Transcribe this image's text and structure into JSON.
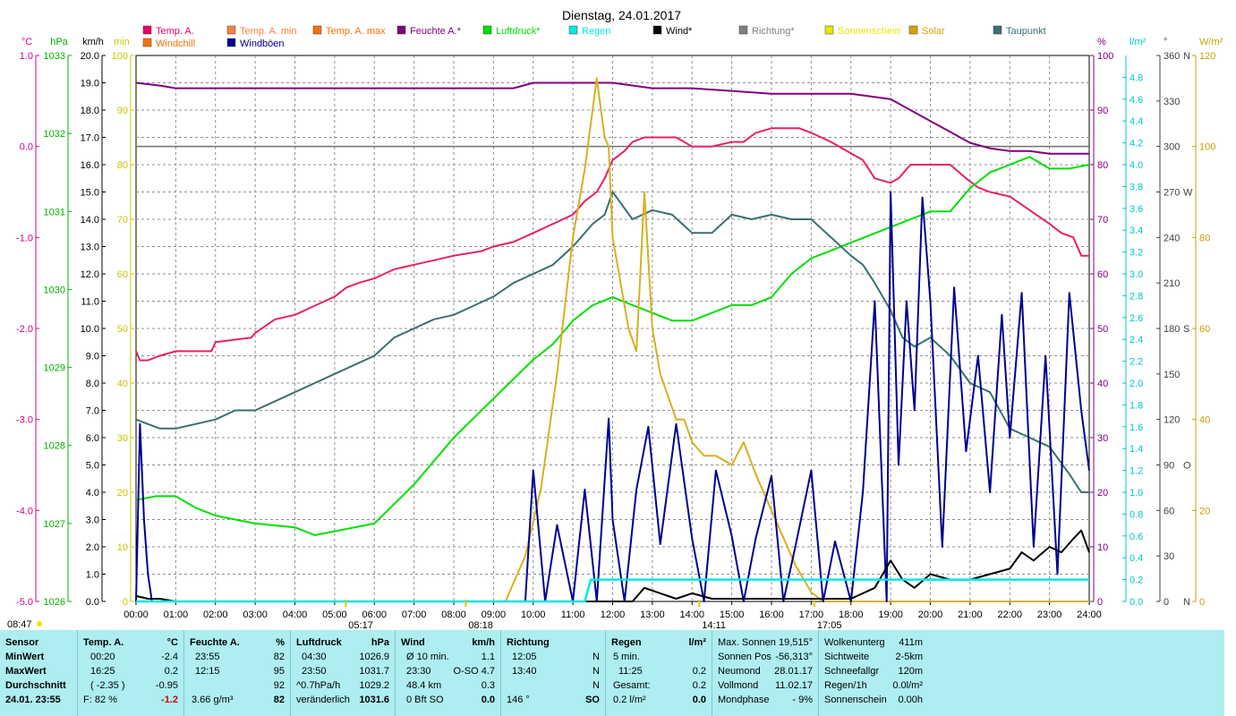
{
  "chart_data": {
    "type": "line",
    "title": "Dienstag, 24.01.2017",
    "x_ticks": [
      "00:00",
      "01:00",
      "02:00",
      "03:00",
      "04:00",
      "05:00",
      "06:00",
      "07:00",
      "08:00",
      "09:00",
      "10:00",
      "11:00",
      "12:00",
      "13:00",
      "14:00",
      "15:00",
      "16:00",
      "17:00",
      "18:00",
      "19:00",
      "20:00",
      "21:00",
      "22:00",
      "23:00",
      "24:00"
    ],
    "xlim": [
      0,
      24
    ],
    "grid": true,
    "legend_position": "top",
    "left_axes": [
      {
        "unit": "°C",
        "color": "#d0008a",
        "ticks": [
          "1.0",
          "0.0",
          "-1.0",
          "-2.0",
          "-3.0",
          "-4.0",
          "-5.0"
        ],
        "ylim": [
          -5,
          1
        ]
      },
      {
        "unit": "hPa",
        "color": "#00b000",
        "ticks": [
          "1033",
          "1032",
          "1031",
          "1030",
          "1029",
          "1028",
          "1027",
          "1026"
        ],
        "ylim": [
          1026,
          1033
        ]
      },
      {
        "unit": "km/h",
        "color": "#000000",
        "ticks": [
          "20.0",
          "19.0",
          "18.0",
          "17.0",
          "16.0",
          "15.0",
          "14.0",
          "13.0",
          "12.0",
          "11.0",
          "10.0",
          "9.0",
          "8.0",
          "7.0",
          "6.0",
          "5.0",
          "4.0",
          "3.0",
          "2.0",
          "1.0",
          "0.0"
        ],
        "ylim": [
          0,
          20
        ]
      },
      {
        "unit": "min",
        "color": "#c8c800",
        "ticks": [
          "100",
          "90",
          "80",
          "70",
          "60",
          "50",
          "40",
          "30",
          "20",
          "10",
          "0"
        ],
        "ylim": [
          0,
          100
        ]
      }
    ],
    "right_axes": [
      {
        "unit": "%",
        "color": "#800080",
        "ticks": [
          "100",
          "90",
          "80",
          "70",
          "60",
          "50",
          "40",
          "30",
          "20",
          "10",
          "0"
        ],
        "ylim": [
          0,
          100
        ]
      },
      {
        "unit": "l/m²",
        "color": "#00c8c8",
        "ticks": [
          "4.8",
          "4.6",
          "4.4",
          "4.2",
          "4.0",
          "3.8",
          "3.6",
          "3.4",
          "3.2",
          "3.0",
          "2.8",
          "2.6",
          "2.4",
          "2.2",
          "2.0",
          "1.8",
          "1.6",
          "1.4",
          "1.2",
          "1.0",
          "0.8",
          "0.6",
          "0.4",
          "0.2",
          "0.0"
        ],
        "ylim": [
          0,
          5
        ]
      },
      {
        "unit": "°",
        "color": "#404040",
        "ticks": [
          "360",
          "330",
          "300",
          "270",
          "240",
          "210",
          "180",
          "150",
          "120",
          "90",
          "60",
          "30",
          "0"
        ],
        "compass": {
          "360": "N",
          "270": "W",
          "180": "S",
          "90": "O",
          "0": "N"
        },
        "ylim": [
          0,
          360
        ]
      },
      {
        "unit": "W/m²",
        "color": "#c8a000",
        "ticks": [
          "120",
          "100",
          "80",
          "60",
          "40",
          "20",
          "0"
        ],
        "ylim": [
          0,
          120
        ]
      }
    ],
    "legend": [
      {
        "name": "Temp. A.",
        "color": "#e8006a"
      },
      {
        "name": "Temp. A. min",
        "color": "#ff8040"
      },
      {
        "name": "Temp. A. max",
        "color": "#ff7000"
      },
      {
        "name": "Feuchte A.*",
        "color": "#800080"
      },
      {
        "name": "Luftdruck*",
        "color": "#00e000"
      },
      {
        "name": "Regen",
        "color": "#00e8e8"
      },
      {
        "name": "Wind*",
        "color": "#000000"
      },
      {
        "name": "Richtung*",
        "color": "#808080"
      },
      {
        "name": "Sonnenschein",
        "color": "#e8e800"
      },
      {
        "name": "Solar",
        "color": "#d8a000"
      },
      {
        "name": "Taupunkt",
        "color": "#3a7070"
      },
      {
        "name": "Windchill",
        "color": "#ff7000"
      },
      {
        "name": "Windböen",
        "color": "#000090"
      }
    ],
    "series": [
      {
        "name": "Temp. A.",
        "color": "#e8206a",
        "axis": "°C",
        "x": [
          0,
          0.1,
          0.3,
          0.6,
          1.0,
          1.9,
          2.0,
          2.9,
          3.0,
          3.5,
          4.0,
          4.5,
          5.0,
          5.3,
          5.6,
          6.0,
          6.5,
          7.0,
          7.5,
          8.0,
          8.7,
          9.0,
          9.5,
          10.0,
          10.5,
          11.0,
          11.3,
          11.6,
          11.8,
          12.0,
          12.3,
          12.5,
          12.8,
          13.0,
          13.3,
          13.6,
          14.0,
          14.5,
          15.0,
          15.3,
          15.6,
          16.0,
          16.7,
          17.0,
          17.5,
          17.9,
          18.3,
          18.6,
          19.0,
          19.2,
          19.5,
          20.0,
          20.5,
          20.9,
          21.2,
          21.5,
          22.0,
          22.5,
          23.0,
          23.3,
          23.6,
          23.8,
          24.0
        ],
        "y": [
          -2.25,
          -2.35,
          -2.35,
          -2.3,
          -2.25,
          -2.25,
          -2.15,
          -2.1,
          -2.05,
          -1.9,
          -1.85,
          -1.75,
          -1.65,
          -1.55,
          -1.5,
          -1.45,
          -1.35,
          -1.3,
          -1.25,
          -1.2,
          -1.15,
          -1.1,
          -1.05,
          -0.95,
          -0.85,
          -0.75,
          -0.6,
          -0.5,
          -0.35,
          -0.15,
          -0.05,
          0.05,
          0.1,
          0.1,
          0.1,
          0.1,
          0.0,
          0.0,
          0.05,
          0.05,
          0.15,
          0.2,
          0.2,
          0.15,
          0.05,
          -0.05,
          -0.15,
          -0.35,
          -0.4,
          -0.35,
          -0.2,
          -0.2,
          -0.2,
          -0.35,
          -0.45,
          -0.5,
          -0.55,
          -0.7,
          -0.85,
          -0.95,
          -1.0,
          -1.2,
          -1.2
        ]
      },
      {
        "name": "Feuchte A.*",
        "color": "#800080",
        "axis": "%",
        "x": [
          0,
          0.6,
          1.0,
          3.0,
          5.0,
          8.0,
          9.5,
          10.0,
          11.0,
          12.0,
          13.0,
          14.0,
          15.0,
          16.0,
          17.0,
          18.0,
          18.5,
          19.0,
          19.5,
          20.0,
          20.5,
          21.0,
          21.5,
          22.0,
          22.5,
          23.0,
          23.5,
          24.0
        ],
        "y": [
          95,
          94.5,
          94,
          94,
          94,
          94,
          94,
          95,
          95,
          95,
          94,
          94,
          93.5,
          93,
          93,
          93,
          92.5,
          92,
          90,
          88,
          86,
          84,
          83,
          82.5,
          82.5,
          82,
          82,
          82
        ]
      },
      {
        "name": "Luftdruck*",
        "color": "#00e000",
        "axis": "hPa",
        "x": [
          0,
          0.5,
          1.0,
          1.5,
          2.0,
          3.0,
          4.0,
          4.5,
          5.0,
          6.0,
          7.0,
          8.0,
          9.0,
          10.0,
          10.5,
          11.0,
          11.5,
          12.0,
          12.5,
          13.0,
          13.5,
          14.0,
          14.5,
          15.0,
          15.5,
          16.0,
          16.5,
          17.0,
          17.5,
          18.0,
          18.5,
          19.0,
          19.5,
          20.0,
          20.5,
          21.0,
          21.5,
          22.0,
          22.5,
          23.0,
          23.5,
          24.0
        ],
        "y": [
          1027.3,
          1027.35,
          1027.35,
          1027.2,
          1027.1,
          1027.0,
          1026.95,
          1026.85,
          1026.9,
          1027.0,
          1027.5,
          1028.1,
          1028.6,
          1029.1,
          1029.3,
          1029.6,
          1029.8,
          1029.9,
          1029.8,
          1029.7,
          1029.6,
          1029.6,
          1029.7,
          1029.8,
          1029.8,
          1029.9,
          1030.2,
          1030.4,
          1030.5,
          1030.6,
          1030.7,
          1030.8,
          1030.9,
          1031.0,
          1031.0,
          1031.3,
          1031.5,
          1031.6,
          1031.7,
          1031.55,
          1031.55,
          1031.6
        ]
      },
      {
        "name": "Taupunkt",
        "color": "#3a7070",
        "axis": "°C",
        "x": [
          0,
          0.3,
          0.6,
          1.0,
          2.0,
          2.5,
          3.0,
          3.5,
          4.0,
          4.5,
          5.0,
          5.5,
          6.0,
          6.5,
          7.0,
          7.5,
          8.0,
          8.5,
          9.0,
          9.5,
          10.0,
          10.5,
          11.0,
          11.5,
          11.8,
          12.0,
          12.5,
          13.0,
          13.5,
          14.0,
          14.5,
          15.0,
          15.5,
          16.0,
          16.5,
          17.0,
          17.5,
          18.0,
          18.3,
          18.6,
          19.0,
          19.3,
          19.6,
          20.0,
          20.5,
          21.0,
          21.5,
          22.0,
          22.5,
          23.0,
          23.5,
          23.8,
          24.0
        ],
        "y": [
          -3.0,
          -3.05,
          -3.1,
          -3.1,
          -3.0,
          -2.9,
          -2.9,
          -2.8,
          -2.7,
          -2.6,
          -2.5,
          -2.4,
          -2.3,
          -2.1,
          -2.0,
          -1.9,
          -1.85,
          -1.75,
          -1.65,
          -1.5,
          -1.4,
          -1.3,
          -1.1,
          -0.85,
          -0.75,
          -0.5,
          -0.8,
          -0.7,
          -0.75,
          -0.95,
          -0.95,
          -0.75,
          -0.8,
          -0.75,
          -0.8,
          -0.8,
          -1.0,
          -1.2,
          -1.3,
          -1.5,
          -1.8,
          -2.1,
          -2.2,
          -2.1,
          -2.3,
          -2.6,
          -2.7,
          -3.1,
          -3.2,
          -3.3,
          -3.6,
          -3.8,
          -3.8
        ]
      },
      {
        "name": "Solar",
        "color": "#d8b020",
        "axis": "W/m²",
        "x": [
          0,
          9.3,
          9.8,
          10.2,
          10.6,
          11.0,
          11.3,
          11.6,
          11.8,
          11.9,
          12.0,
          12.2,
          12.4,
          12.6,
          12.8,
          13.0,
          13.2,
          13.4,
          13.6,
          13.8,
          14.0,
          14.3,
          14.6,
          15.0,
          15.3,
          15.6,
          16.0,
          16.3,
          16.6,
          17.0,
          17.3,
          24.0
        ],
        "y": [
          0,
          0,
          10,
          25,
          50,
          80,
          95,
          115,
          102,
          100,
          80,
          70,
          60,
          55,
          90,
          60,
          50,
          45,
          40,
          40,
          35,
          32,
          32,
          30,
          35,
          28,
          20,
          14,
          8,
          2,
          0,
          0
        ]
      },
      {
        "name": "Windböen",
        "color": "#000090",
        "axis": "km/h",
        "x": [
          0,
          0.1,
          0.2,
          0.3,
          0.4,
          9.8,
          10.0,
          10.3,
          10.6,
          11.0,
          11.3,
          11.6,
          11.9,
          12.0,
          12.3,
          12.6,
          12.9,
          13.2,
          13.6,
          14.0,
          14.3,
          14.6,
          15.0,
          15.3,
          15.6,
          16.0,
          16.3,
          16.6,
          17.0,
          17.3,
          17.6,
          18.0,
          18.3,
          18.6,
          18.9,
          19.0,
          19.2,
          19.4,
          19.6,
          19.8,
          20.0,
          20.3,
          20.6,
          20.9,
          21.2,
          21.5,
          21.8,
          22.0,
          22.3,
          22.6,
          22.9,
          23.2,
          23.5,
          23.8,
          24.0
        ],
        "y": [
          0,
          6.5,
          3.0,
          1.0,
          0,
          0,
          4.8,
          0,
          2.8,
          0,
          4.1,
          0,
          6.7,
          3.0,
          0,
          4.1,
          6.4,
          2.1,
          6.5,
          2.3,
          0,
          4.8,
          2.4,
          0,
          2.3,
          4.6,
          0,
          2.0,
          4.8,
          0,
          2.2,
          0,
          4.0,
          11.0,
          0,
          15.0,
          5.0,
          11.0,
          7.0,
          14.8,
          11.0,
          2.0,
          11.5,
          5.5,
          9.0,
          4.0,
          10.5,
          6.0,
          11.3,
          2.0,
          9.0,
          1.0,
          11.3,
          7.0,
          4.8
        ]
      },
      {
        "name": "Wind*",
        "color": "#000000",
        "axis": "km/h",
        "x": [
          0,
          0.3,
          0.6,
          1.0,
          12.5,
          12.8,
          13.2,
          13.6,
          14.0,
          14.5,
          15.0,
          16.0,
          17.0,
          18.0,
          18.6,
          19.0,
          19.3,
          19.6,
          20.0,
          20.5,
          21.0,
          21.5,
          22.0,
          22.3,
          22.6,
          23.0,
          23.3,
          23.6,
          23.8,
          24.0
        ],
        "y": [
          0.2,
          0.1,
          0.1,
          0,
          0,
          0.5,
          0.3,
          0.1,
          0.3,
          0.1,
          0.1,
          0.1,
          0.1,
          0.1,
          0.5,
          1.5,
          0.8,
          0.5,
          1.0,
          0.8,
          0.8,
          1.0,
          1.2,
          1.8,
          1.5,
          2.0,
          1.8,
          2.3,
          2.6,
          1.8
        ]
      },
      {
        "name": "Regen",
        "color": "#00e8e8",
        "axis": "l/m²",
        "x": [
          0,
          11.3,
          11.45,
          24.0
        ],
        "y": [
          0,
          0,
          0.2,
          0.2
        ]
      }
    ],
    "annotations": [
      {
        "text": "08:47",
        "position": "left"
      },
      {
        "text": "05:17",
        "x": 5.28
      },
      {
        "text": "08:18",
        "x": 8.3
      },
      {
        "text": "14:11",
        "x": 14.18
      },
      {
        "text": "17:05",
        "x": 17.08
      }
    ]
  },
  "stats": {
    "sensor": {
      "header": "Sensor",
      "rows": [
        "MinWert",
        "MaxWert",
        "Durchschnitt",
        "24.01. 23:55"
      ]
    },
    "temp": {
      "header": "Temp. A.",
      "unit": "°C",
      "rows": [
        [
          "00:20",
          "-2.4"
        ],
        [
          "16:25",
          "0.2"
        ],
        [
          "( -2.35 )",
          "-0.95"
        ],
        [
          "F: 82 %",
          "-1.2"
        ]
      ]
    },
    "feuchte": {
      "header": "Feuchte A.",
      "unit": "%",
      "rows": [
        [
          "23:55",
          "82"
        ],
        [
          "12:15",
          "95"
        ],
        [
          "",
          "92"
        ],
        [
          "3.66 g/m³",
          "82"
        ]
      ]
    },
    "luftdruck": {
      "header": "Luftdruck",
      "unit": "hPa",
      "rows": [
        [
          "04:30",
          "1026.9"
        ],
        [
          "23:50",
          "1031.7"
        ],
        [
          "^0.7hPa/h",
          "1029.2"
        ],
        [
          "veränderlich",
          "1031.6"
        ]
      ]
    },
    "wind": {
      "header": "Wind",
      "unit": "km/h",
      "rows": [
        [
          "Ø 10 min.",
          "1.1"
        ],
        [
          "23:30",
          "O-SO 4.7"
        ],
        [
          "48.4 km",
          "0.3"
        ],
        [
          "0 Bft SO",
          "0.0"
        ]
      ]
    },
    "richtung": {
      "header": "Richtung",
      "rows": [
        [
          "12:05",
          "N"
        ],
        [
          "13:40",
          "N"
        ],
        [
          "",
          "N"
        ],
        [
          "146 °",
          "SO"
        ]
      ]
    },
    "regen": {
      "header": "Regen",
      "unit": "l/m²",
      "rows": [
        [
          "5 min.",
          ""
        ],
        [
          "11:25",
          "0.2"
        ],
        [
          "Gesamt:",
          "0.2"
        ],
        [
          "0.2 l/m²",
          "0.0"
        ]
      ]
    },
    "sonne": {
      "rows": [
        [
          "Max. Sonnen",
          "19,515°"
        ],
        [
          "Sonnen Pos",
          "-56,313°"
        ],
        [
          "Neumond",
          "28.01.17"
        ],
        [
          "Vollmond",
          "11.02.17"
        ],
        [
          "Mondphase",
          "- 9%"
        ]
      ]
    },
    "misc": {
      "rows": [
        [
          "Wolkenunterg",
          "411m"
        ],
        [
          "Sichtweite",
          "2-5km"
        ],
        [
          "Schneefallgr",
          "120m"
        ],
        [
          "Regen/1h",
          "0.0l/m²"
        ],
        [
          "Sonnenschein",
          "0.00h"
        ]
      ]
    }
  }
}
